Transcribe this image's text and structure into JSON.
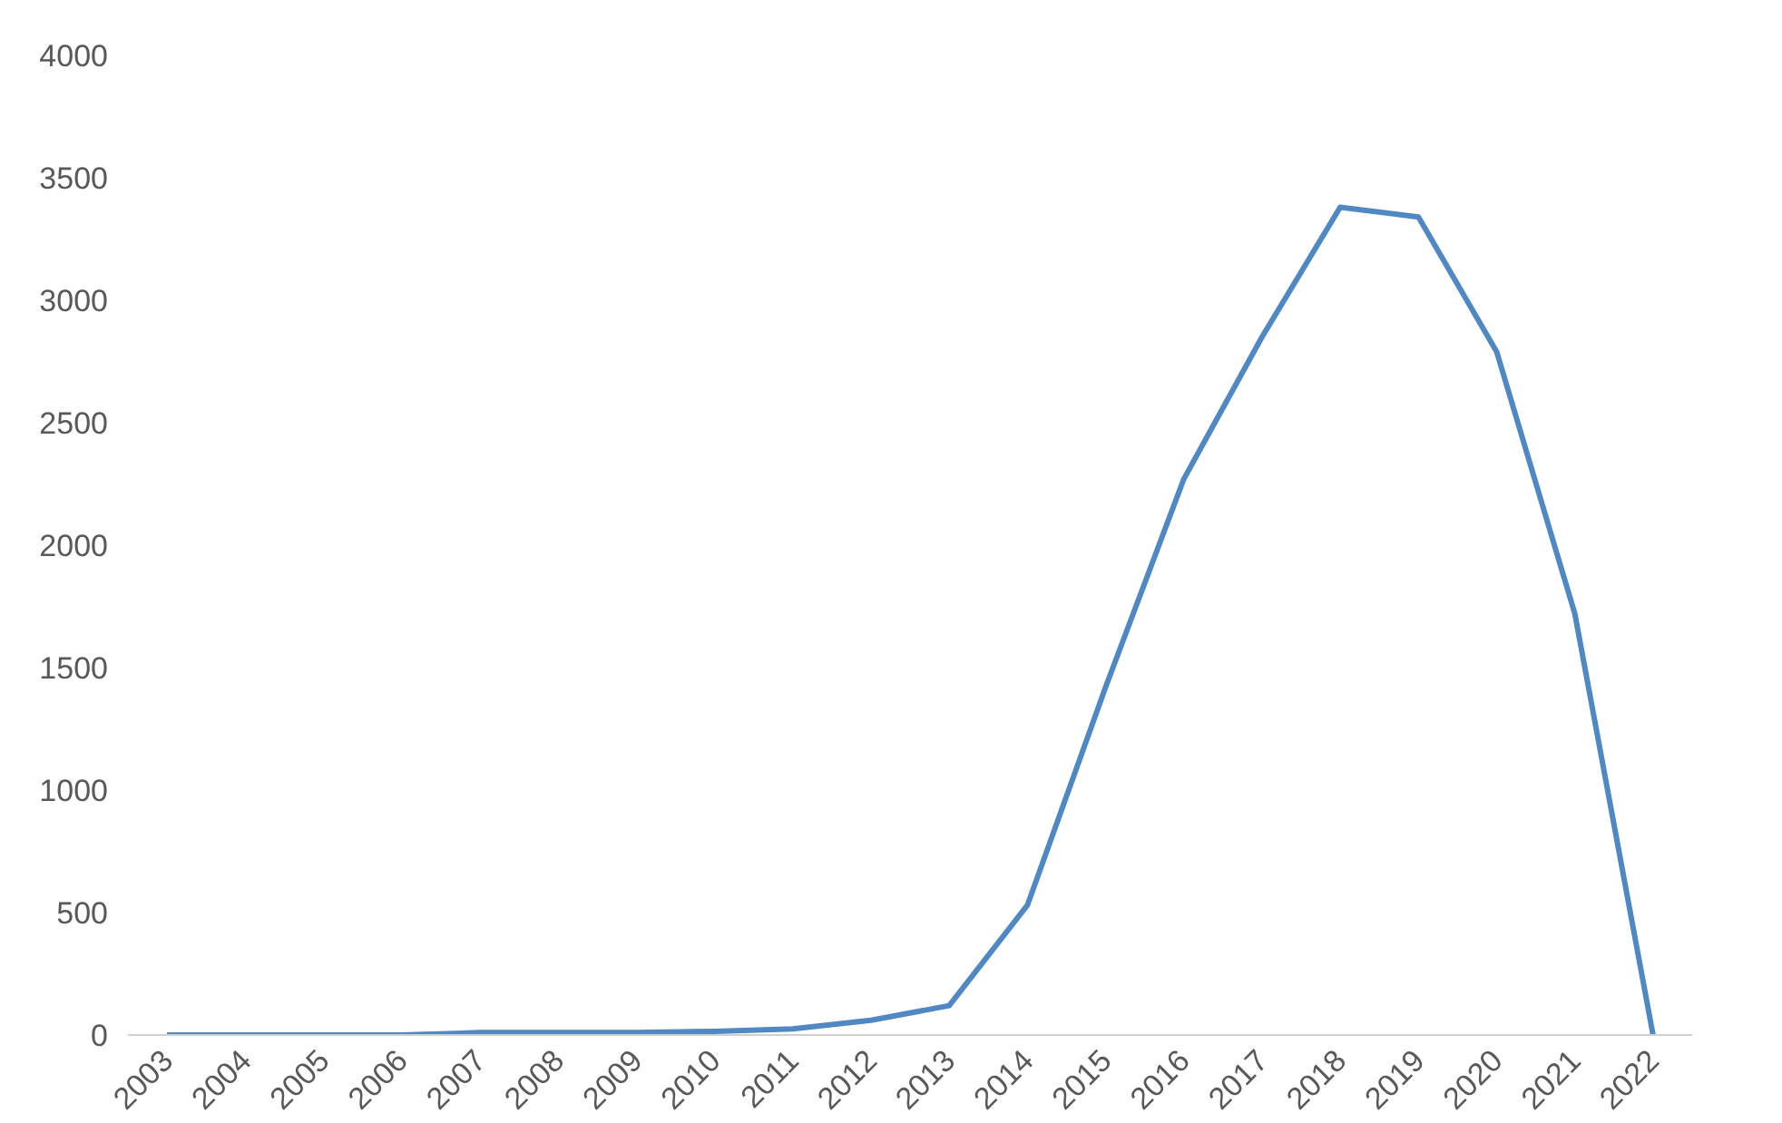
{
  "chart_data": {
    "type": "line",
    "categories": [
      "2003",
      "2004",
      "2005",
      "2006",
      "2007",
      "2008",
      "2009",
      "2010",
      "2011",
      "2012",
      "2013",
      "2014",
      "2015",
      "2016",
      "2017",
      "2018",
      "2019",
      "2020",
      "2021",
      "2022"
    ],
    "series": [
      {
        "color": "#4f88c2",
        "values": [
          0,
          0,
          0,
          0,
          10,
          10,
          10,
          15,
          25,
          60,
          120,
          530,
          1420,
          2270,
          2850,
          3380,
          3340,
          2790,
          1720,
          0
        ]
      }
    ],
    "ylim": [
      0,
      4000
    ],
    "yticks": [
      0,
      500,
      1000,
      1500,
      2000,
      2500,
      3000,
      3500,
      4000
    ],
    "grid": false,
    "marker": "none",
    "line_style": "solid"
  }
}
